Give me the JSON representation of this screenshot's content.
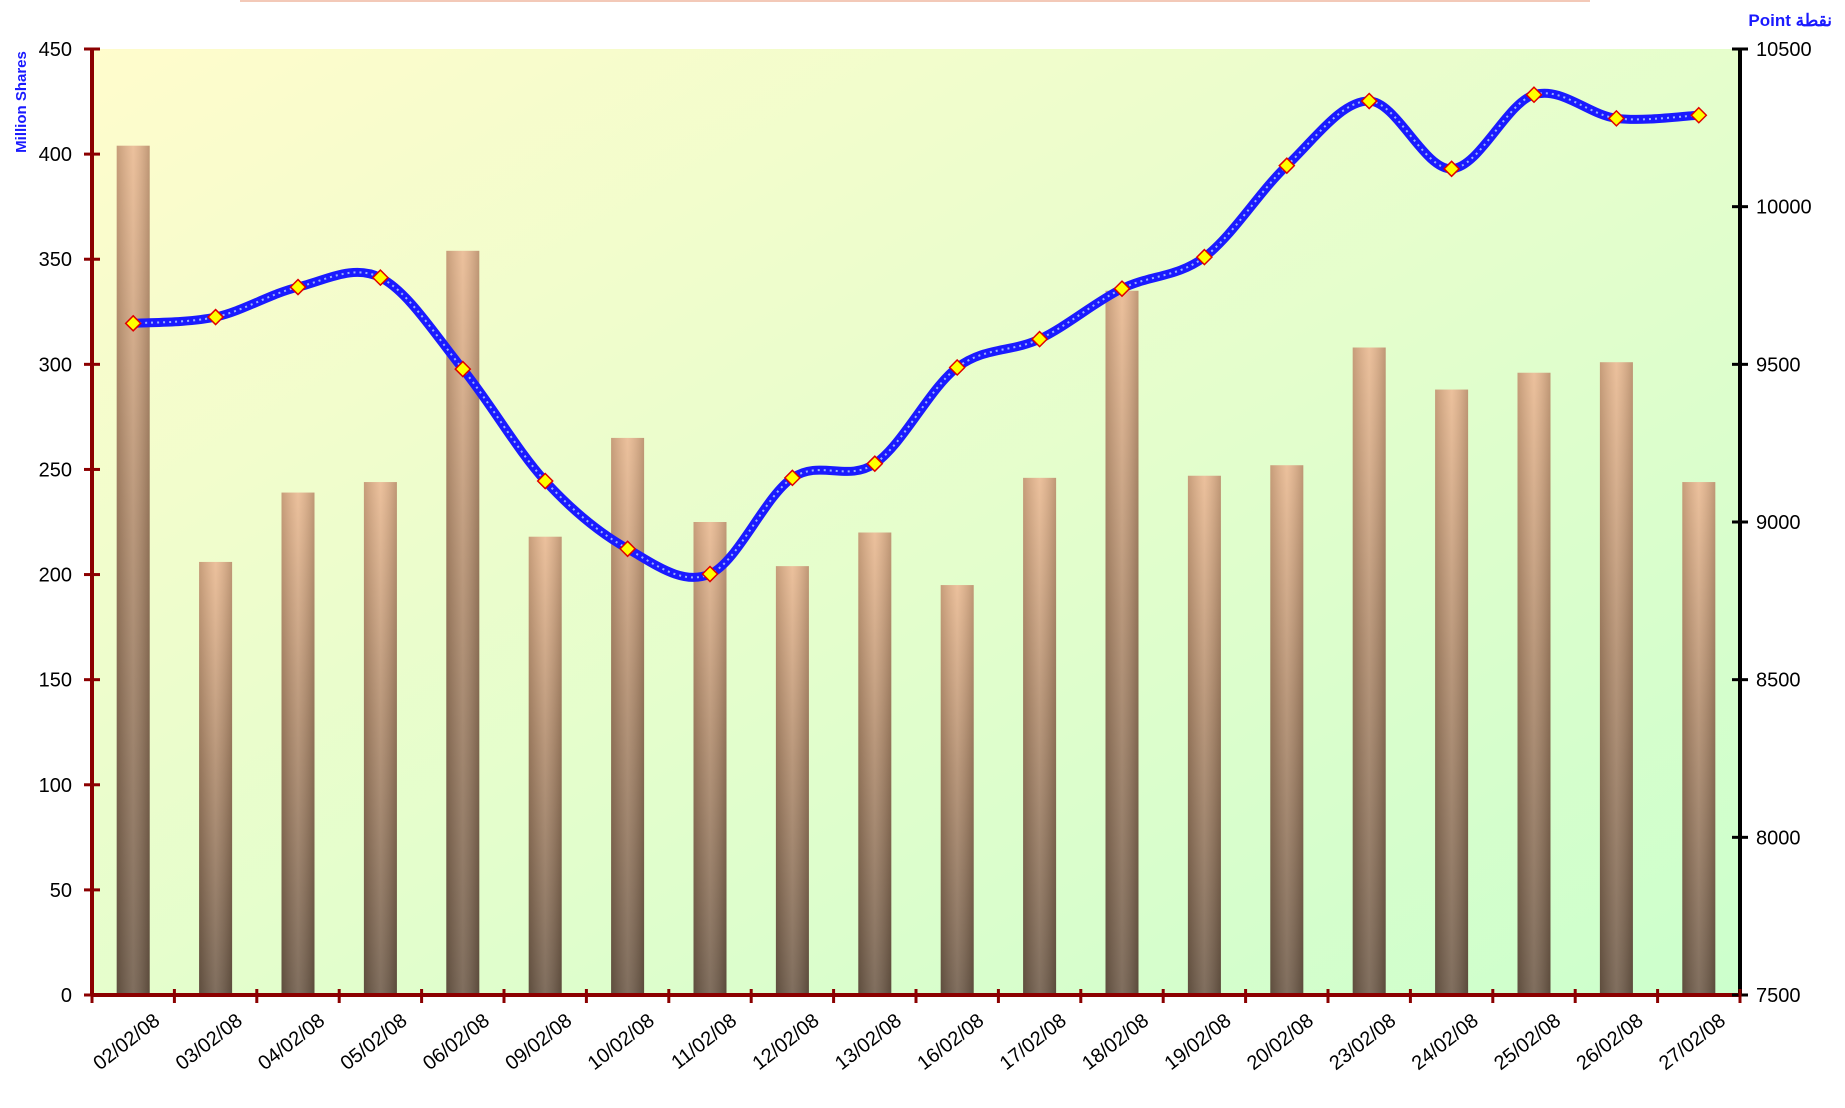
{
  "chart_data": {
    "type": "bar+line",
    "categories": [
      "02/02/08",
      "03/02/08",
      "04/02/08",
      "05/02/08",
      "06/02/08",
      "09/02/08",
      "10/02/08",
      "11/02/08",
      "12/02/08",
      "13/02/08",
      "16/02/08",
      "17/02/08",
      "18/02/08",
      "19/02/08",
      "20/02/08",
      "23/02/08",
      "24/02/08",
      "25/02/08",
      "26/02/08",
      "27/02/08"
    ],
    "series": [
      {
        "type": "bar",
        "axis": "left",
        "values": [
          404,
          206,
          239,
          244,
          354,
          218,
          265,
          225,
          204,
          220,
          195,
          246,
          335,
          247,
          252,
          308,
          288,
          296,
          301,
          244
        ],
        "color": "#a07858"
      },
      {
        "type": "line",
        "axis": "right",
        "values": [
          9630,
          9650,
          9745,
          9775,
          9485,
          9130,
          8915,
          8835,
          9140,
          9185,
          9490,
          9580,
          9740,
          9840,
          10130,
          10335,
          10120,
          10355,
          10280,
          10290
        ],
        "color": "#1a1aff",
        "marker_fill": "#ffff00",
        "marker_stroke": "#e00000"
      }
    ],
    "left_axis": {
      "label": "Million Shares",
      "ylim": [
        0,
        450
      ],
      "ticks": [
        "0",
        "50",
        "100",
        "150",
        "200",
        "250",
        "300",
        "350",
        "400",
        "450"
      ]
    },
    "right_axis": {
      "label": "Point  نقطة",
      "ylim": [
        7500,
        10500
      ],
      "ticks": [
        "7500",
        "8000",
        "8500",
        "9000",
        "9500",
        "10000",
        "10500"
      ]
    },
    "background": {
      "top_left": "#fffccc",
      "bottom_right": "#ccffcc"
    },
    "axis_color": "#8b0000"
  }
}
